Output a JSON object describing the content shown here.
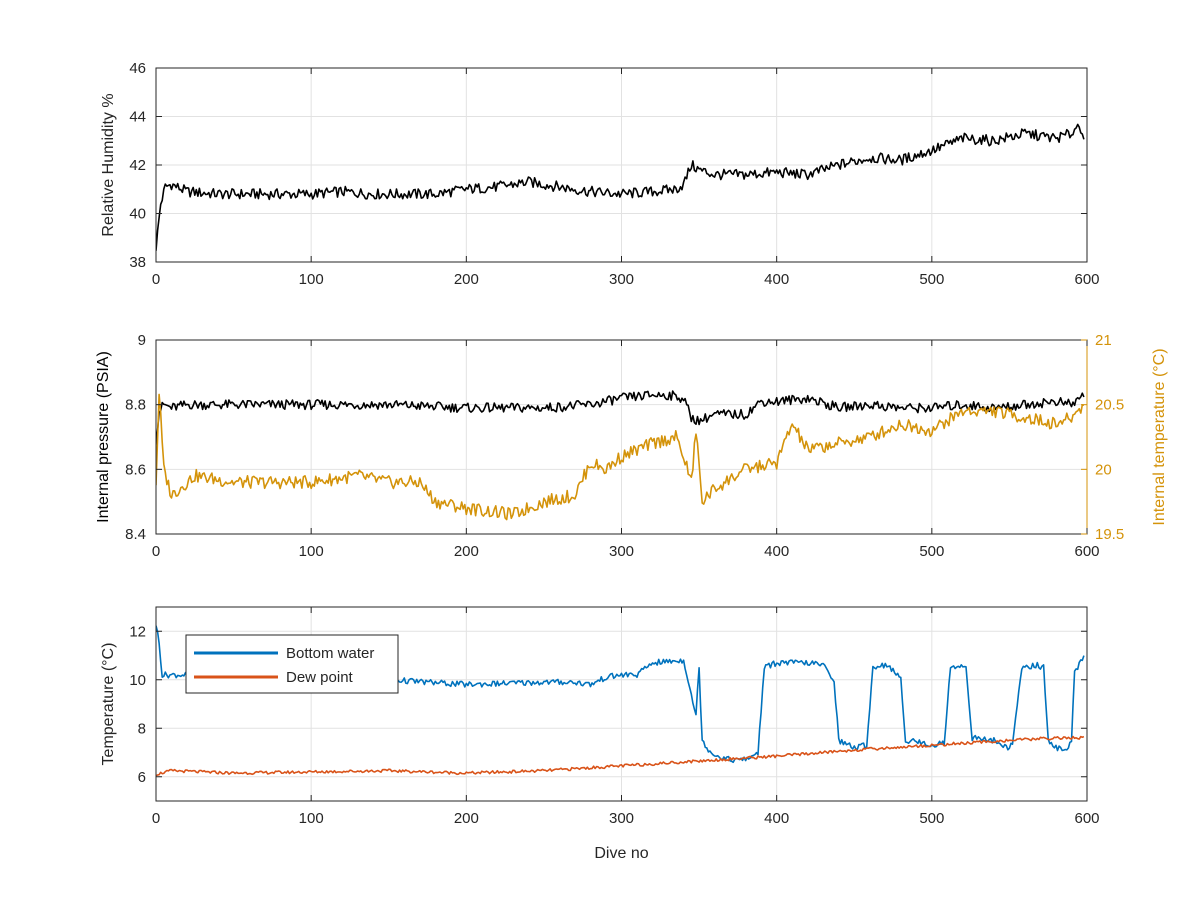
{
  "chart_data": [
    {
      "type": "line",
      "xlim": [
        0,
        600
      ],
      "ylim": [
        38,
        46
      ],
      "xticks": [
        0,
        100,
        200,
        300,
        400,
        500,
        600
      ],
      "yticks": [
        38,
        40,
        42,
        44,
        46
      ],
      "xlabel": "",
      "ylabel": "Relative Humidity %",
      "grid": true,
      "series": [
        {
          "color": "#000000",
          "x": [
            0,
            3,
            6,
            10,
            20,
            40,
            60,
            80,
            100,
            120,
            140,
            160,
            180,
            200,
            220,
            240,
            260,
            280,
            300,
            320,
            335,
            340,
            345,
            350,
            360,
            380,
            400,
            420,
            440,
            460,
            480,
            500,
            520,
            540,
            560,
            580,
            590,
            595,
            598
          ],
          "y": [
            38.6,
            40.4,
            41.1,
            41.2,
            40.9,
            40.8,
            40.8,
            40.8,
            40.8,
            40.9,
            40.8,
            40.8,
            40.8,
            41.0,
            41.1,
            41.3,
            41.1,
            40.9,
            40.8,
            40.9,
            41.0,
            41.2,
            42.0,
            41.8,
            41.6,
            41.6,
            41.7,
            41.6,
            42.0,
            42.3,
            42.2,
            42.6,
            43.1,
            43.0,
            43.3,
            43.1,
            43.3,
            43.7,
            43.2
          ]
        }
      ]
    },
    {
      "type": "line",
      "xlim": [
        0,
        600
      ],
      "ylim": [
        8.4,
        9
      ],
      "y2lim": [
        19.5,
        21
      ],
      "xticks": [
        0,
        100,
        200,
        300,
        400,
        500,
        600
      ],
      "yticks": [
        8.4,
        8.6,
        8.8,
        9
      ],
      "y2ticks": [
        19.5,
        20,
        20.5,
        21
      ],
      "ylabel": "Internal pressure (PSIA)",
      "y2label": "Internal temperature (°C)",
      "grid": true,
      "series": [
        {
          "axis": "left",
          "color": "#000000",
          "x": [
            0,
            2,
            5,
            10,
            20,
            50,
            100,
            150,
            200,
            250,
            280,
            300,
            320,
            330,
            340,
            345,
            350,
            360,
            380,
            390,
            400,
            420,
            440,
            460,
            480,
            500,
            520,
            540,
            560,
            580,
            590,
            598
          ],
          "y": [
            8.69,
            8.78,
            8.8,
            8.79,
            8.8,
            8.8,
            8.8,
            8.8,
            8.79,
            8.79,
            8.8,
            8.82,
            8.83,
            8.83,
            8.82,
            8.76,
            8.75,
            8.77,
            8.77,
            8.81,
            8.81,
            8.82,
            8.79,
            8.8,
            8.79,
            8.79,
            8.8,
            8.79,
            8.8,
            8.81,
            8.8,
            8.83
          ]
        },
        {
          "axis": "right",
          "color": "#D4930A",
          "x": [
            0,
            2,
            5,
            10,
            15,
            25,
            50,
            80,
            100,
            130,
            150,
            170,
            180,
            200,
            230,
            250,
            270,
            280,
            290,
            300,
            320,
            335,
            340,
            345,
            348,
            352,
            360,
            380,
            400,
            410,
            420,
            440,
            460,
            480,
            500,
            520,
            540,
            560,
            580,
            590,
            598
          ],
          "y": [
            19.9,
            20.6,
            20.0,
            19.8,
            19.85,
            19.95,
            19.9,
            19.9,
            19.9,
            19.95,
            19.9,
            19.9,
            19.75,
            19.7,
            19.65,
            19.75,
            19.8,
            20.05,
            20.0,
            20.1,
            20.2,
            20.25,
            20.1,
            19.9,
            20.3,
            19.75,
            19.85,
            20.0,
            20.05,
            20.35,
            20.15,
            20.2,
            20.25,
            20.35,
            20.3,
            20.45,
            20.45,
            20.4,
            20.35,
            20.4,
            20.5
          ]
        }
      ]
    },
    {
      "type": "line",
      "xlim": [
        0,
        600
      ],
      "ylim": [
        5,
        13
      ],
      "xticks": [
        0,
        100,
        200,
        300,
        400,
        500,
        600
      ],
      "yticks": [
        6,
        8,
        10,
        12
      ],
      "xlabel": "Dive no",
      "ylabel": "Temperature (°C)",
      "grid": true,
      "legend": "top-left",
      "series": [
        {
          "name": "Bottom water",
          "color": "#0072BD",
          "x": [
            0,
            2,
            4,
            10,
            50,
            100,
            150,
            200,
            250,
            270,
            280,
            290,
            300,
            310,
            320,
            340,
            343,
            348,
            350,
            352,
            355,
            360,
            370,
            380,
            388,
            392,
            400,
            420,
            430,
            437,
            440,
            450,
            458,
            462,
            467,
            472,
            480,
            483,
            487,
            500,
            508,
            512,
            518,
            522,
            526,
            540,
            548,
            552,
            558,
            568,
            572,
            575,
            585,
            590,
            592,
            598
          ],
          "y": [
            12.3,
            11.5,
            10.2,
            10.2,
            10.2,
            10.1,
            10.0,
            9.8,
            9.9,
            9.9,
            9.8,
            10.1,
            10.2,
            10.2,
            10.7,
            10.8,
            10.0,
            8.5,
            10.5,
            7.5,
            7.2,
            6.9,
            6.7,
            6.7,
            7.0,
            10.5,
            10.7,
            10.7,
            10.6,
            10.0,
            7.5,
            7.2,
            7.3,
            10.5,
            10.6,
            10.6,
            10.0,
            7.5,
            7.5,
            7.3,
            7.4,
            10.5,
            10.6,
            10.5,
            7.6,
            7.5,
            7.2,
            7.3,
            10.5,
            10.6,
            10.5,
            7.5,
            7.0,
            7.5,
            10.3,
            10.9
          ]
        },
        {
          "name": "Dew point",
          "color": "#D95319",
          "x": [
            0,
            10,
            50,
            100,
            150,
            200,
            250,
            300,
            350,
            400,
            450,
            500,
            550,
            580,
            598
          ],
          "y": [
            6.1,
            6.25,
            6.15,
            6.2,
            6.25,
            6.15,
            6.25,
            6.45,
            6.65,
            6.85,
            7.1,
            7.3,
            7.5,
            7.6,
            7.6
          ]
        }
      ]
    }
  ]
}
